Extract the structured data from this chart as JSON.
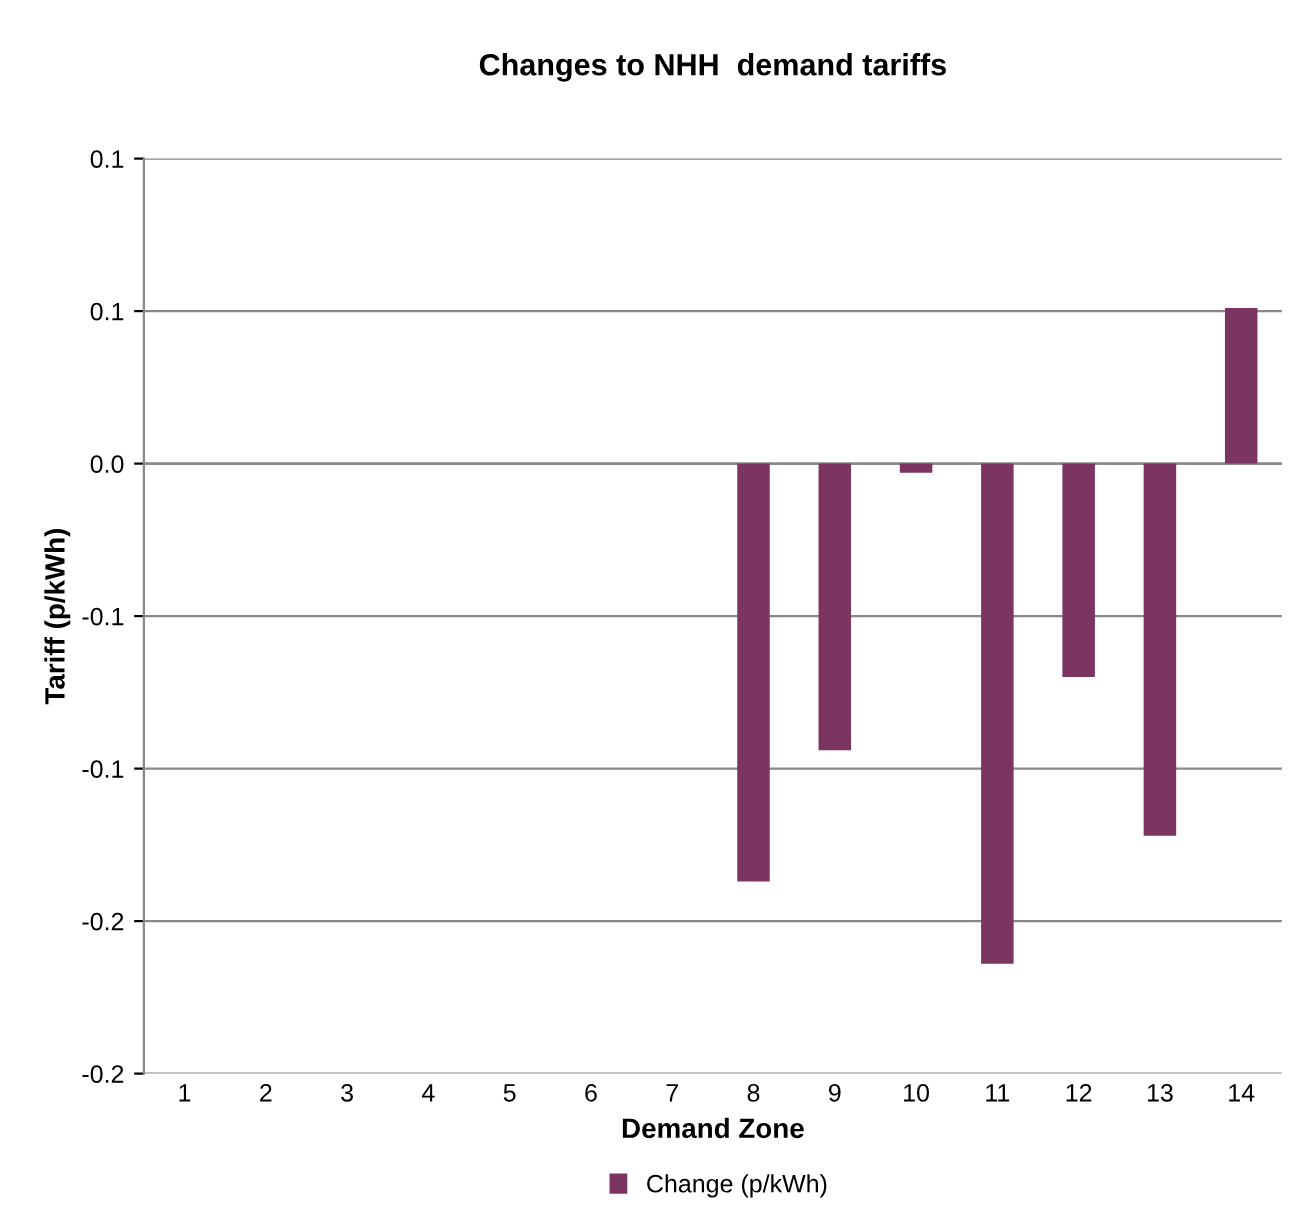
{
  "chart_data": {
    "type": "bar",
    "title": "Changes to NHH  demand tariffs",
    "xlabel": "Demand Zone",
    "ylabel": "Tariff (p/kWh)",
    "categories": [
      "1",
      "2",
      "3",
      "4",
      "5",
      "6",
      "7",
      "8",
      "9",
      "10",
      "11",
      "12",
      "13",
      "14"
    ],
    "series": [
      {
        "name": "Change (p/kWh)",
        "color": "#7b3560",
        "values": [
          0,
          0,
          0,
          0,
          0,
          0,
          0,
          -0.137,
          -0.094,
          -0.003,
          -0.164,
          -0.07,
          -0.122,
          0.051
        ]
      }
    ],
    "ylim": [
      -0.2,
      0.1
    ],
    "yticks": [
      {
        "value": -0.2,
        "label": "-0.2"
      },
      {
        "value": -0.15,
        "label": "-0.2"
      },
      {
        "value": -0.1,
        "label": "-0.1"
      },
      {
        "value": -0.05,
        "label": "-0.1"
      },
      {
        "value": 0,
        "label": "0.0"
      },
      {
        "value": 0.05,
        "label": "0.1"
      },
      {
        "value": 0.1,
        "label": "0.1"
      }
    ],
    "grid": "y",
    "legend": "bottom"
  }
}
